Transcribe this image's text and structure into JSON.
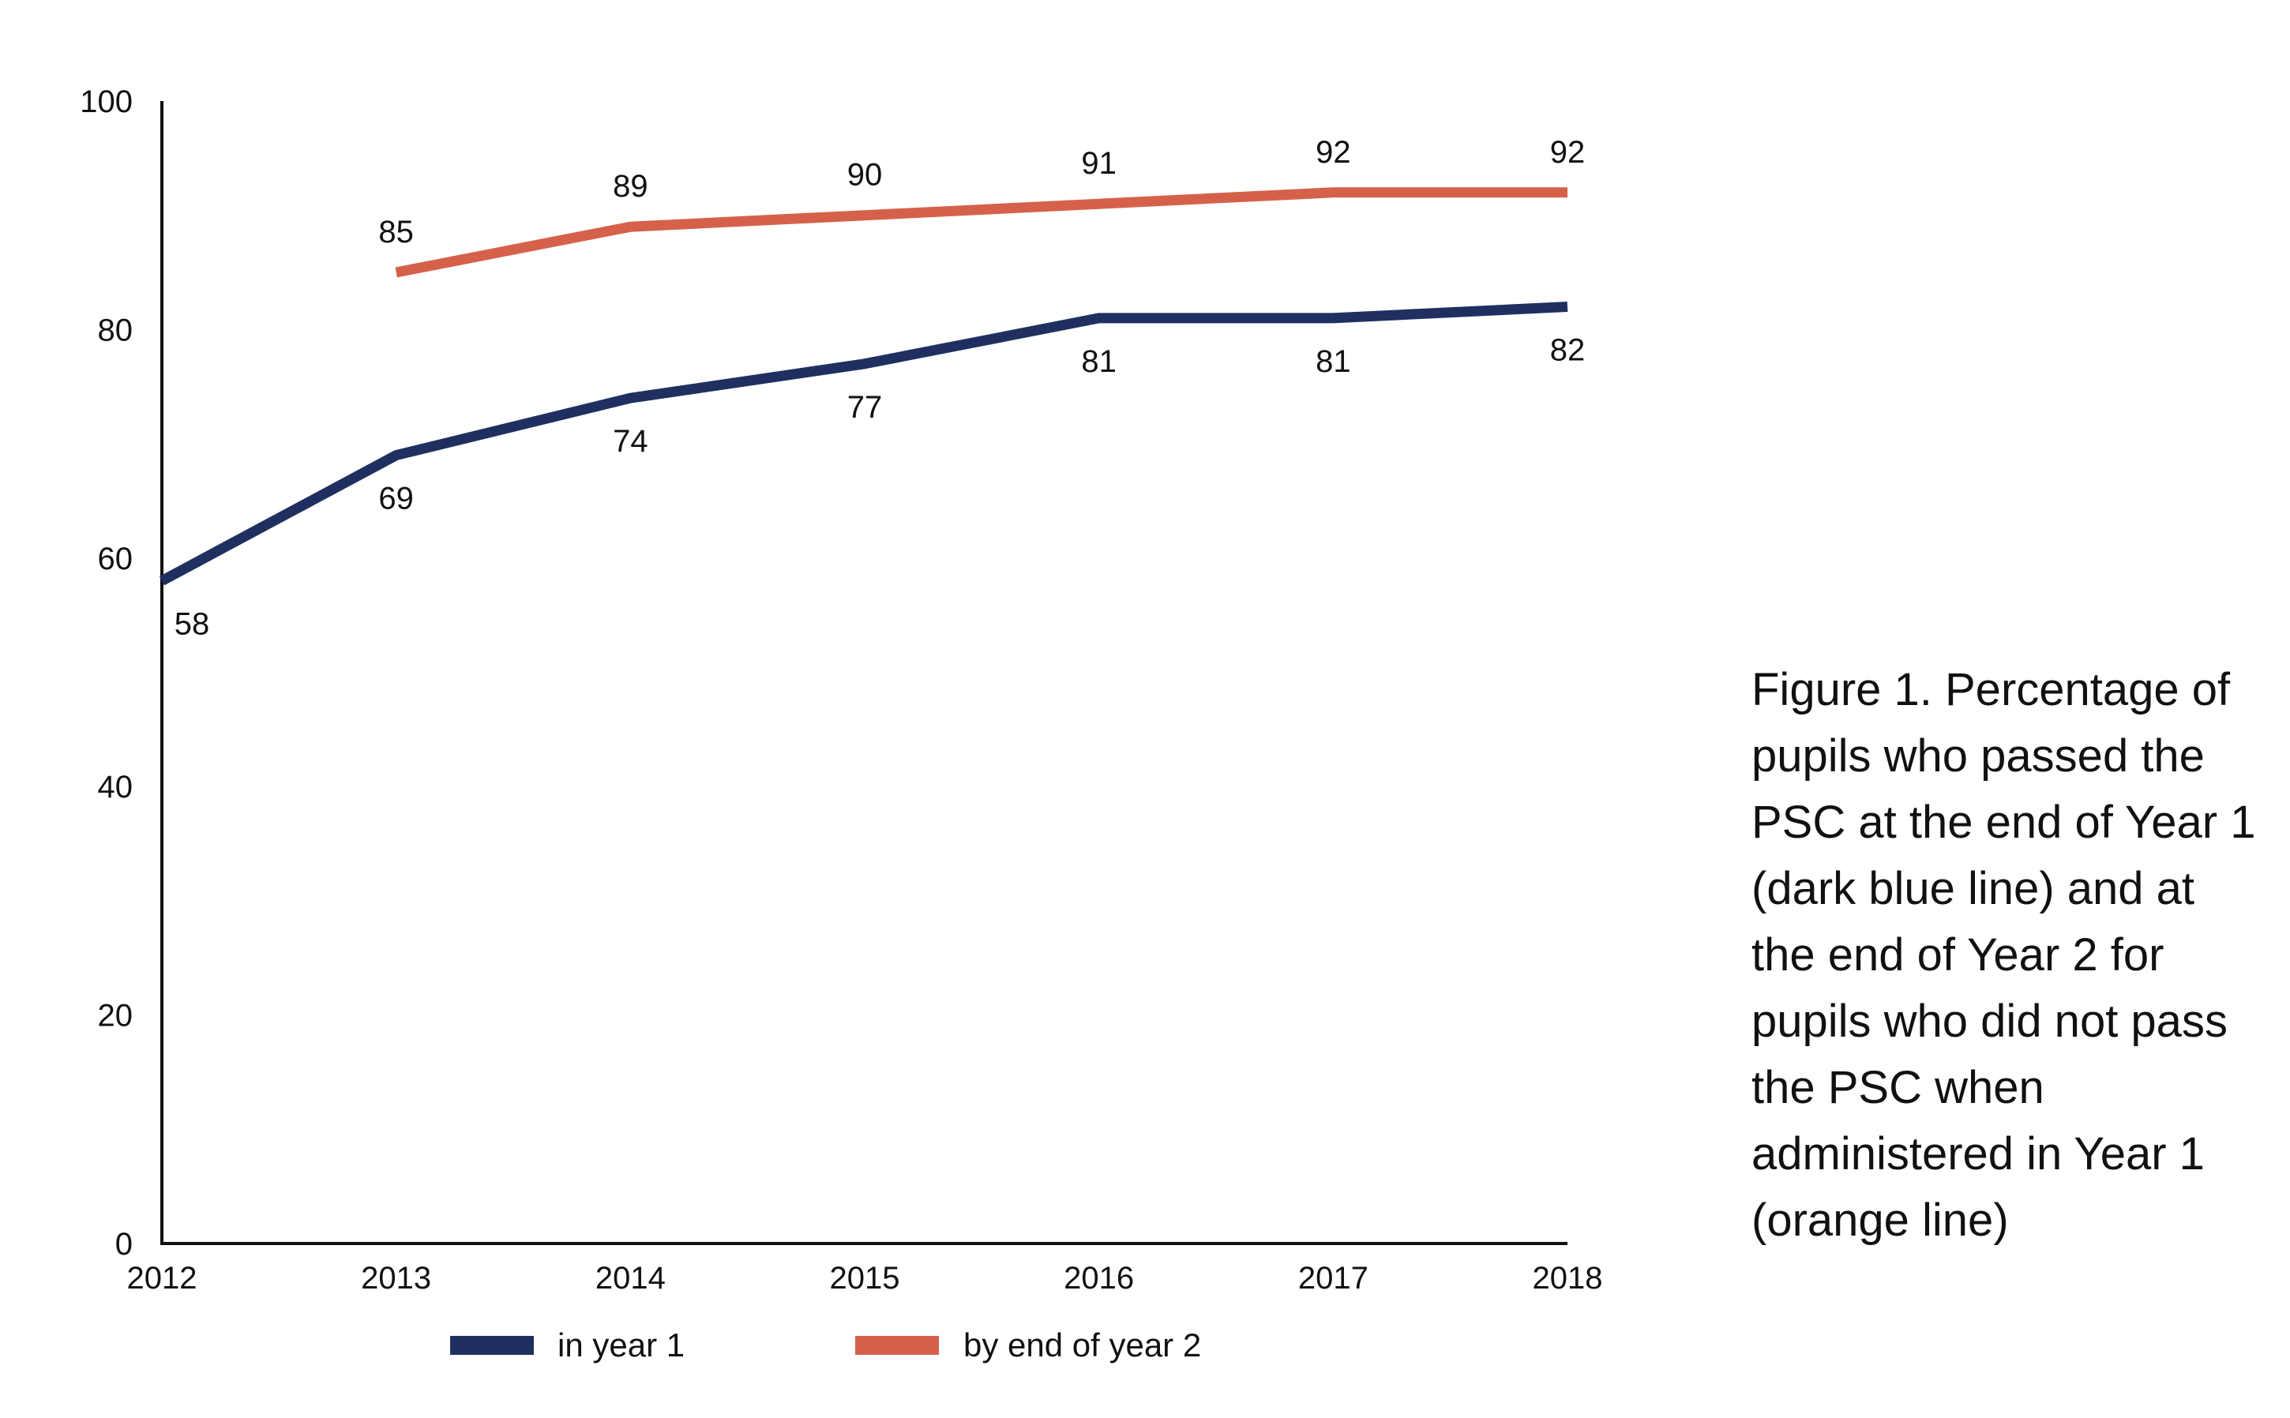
{
  "caption": "Figure 1. Percentage of pupils who passed the PSC at the end of Year 1 (dark blue line) and at the end of Year 2 for pupils who did not pass the PSC when administered in Year 1 (orange line)",
  "chart_data": {
    "type": "line",
    "title": "",
    "xlabel": "",
    "ylabel": "",
    "categories": [
      "2012",
      "2013",
      "2014",
      "2015",
      "2016",
      "2017",
      "2018"
    ],
    "ylim": [
      0,
      100
    ],
    "yticks": [
      0,
      20,
      40,
      60,
      80,
      100
    ],
    "legend_position": "bottom",
    "series": [
      {
        "name": "in year 1",
        "color": "#1f3060",
        "values": [
          58,
          69,
          74,
          77,
          81,
          81,
          82
        ],
        "labels": [
          "58",
          "69",
          "74",
          "77",
          "81",
          "81",
          "82"
        ],
        "label_position": "below"
      },
      {
        "name": "by end of year 2",
        "color": "#d6614b",
        "values": [
          null,
          85,
          89,
          90,
          91,
          92,
          92
        ],
        "labels": [
          null,
          "85",
          "89",
          "90",
          "91",
          "92",
          "92"
        ],
        "label_position": "above"
      }
    ]
  }
}
